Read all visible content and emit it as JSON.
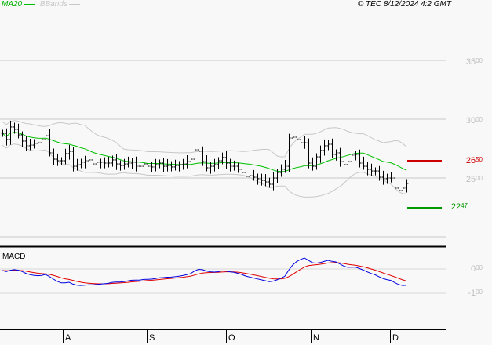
{
  "legend": {
    "ma_label": "MA20",
    "bb_label": "BBands",
    "ma_color": "#00c000",
    "bb_color": "#c8c8c8"
  },
  "copyright": "© TEC 8/12/2024 4:2 GMT",
  "macd_label": "MACD",
  "price_axis": [
    {
      "int": "35",
      "dec": "00",
      "value": 35
    },
    {
      "int": "30",
      "dec": "00",
      "value": 30
    },
    {
      "int": "25",
      "dec": "00",
      "value": 25
    }
  ],
  "macd_axis": [
    {
      "int": "0",
      "dec": "00",
      "value": 0
    },
    {
      "int": "-1",
      "dec": "00",
      "value": -1
    }
  ],
  "levels": {
    "resistance": {
      "int": "26",
      "dec": "50",
      "value": 26.5,
      "color": "#cc0000"
    },
    "support": {
      "int": "22",
      "dec": "47",
      "value": 22.47,
      "color": "#009900"
    }
  },
  "months": [
    "A",
    "S",
    "O",
    "N",
    "D"
  ],
  "chart_data": {
    "type": "ohlc",
    "series": [
      {
        "name": "MA20"
      },
      {
        "name": "BBands"
      },
      {
        "name": "MACD"
      }
    ],
    "ylim": [
      20,
      38
    ],
    "macd_ylim": [
      -2,
      1.2
    ],
    "closes": [
      29.13,
      28.6,
      29.67,
      29.47,
      29.0,
      28.47,
      28.07,
      28.13,
      28.27,
      28.33,
      28.6,
      28.93,
      27.47,
      26.93,
      26.8,
      26.8,
      27.4,
      27.6,
      26.33,
      26.47,
      26.67,
      26.8,
      26.87,
      26.53,
      26.67,
      26.67,
      26.6,
      26.6,
      26.87,
      26.53,
      26.4,
      26.53,
      26.6,
      26.67,
      26.33,
      26.33,
      26.53,
      26.33,
      26.27,
      26.47,
      26.6,
      26.33,
      26.4,
      26.27,
      26.4,
      26.47,
      26.53,
      26.73,
      26.93,
      27.73,
      27.6,
      26.73,
      26.2,
      26.33,
      26.47,
      26.8,
      27.07,
      26.6,
      26.33,
      26.33,
      26.07,
      25.8,
      25.47,
      25.53,
      25.4,
      25.27,
      25.13,
      25.0,
      24.8,
      25.33,
      25.8,
      26.07,
      26.33,
      28.73,
      28.8,
      28.6,
      28.33,
      28.33,
      26.6,
      26.33,
      27.13,
      27.67,
      28.07,
      28.2,
      27.33,
      27.47,
      26.73,
      26.47,
      26.73,
      27.27,
      27.33,
      26.6,
      26.33,
      26.07,
      25.93,
      25.93,
      25.4,
      25.27,
      25.33,
      25.33,
      24.47,
      24.27,
      24.47,
      24.87
    ]
  }
}
